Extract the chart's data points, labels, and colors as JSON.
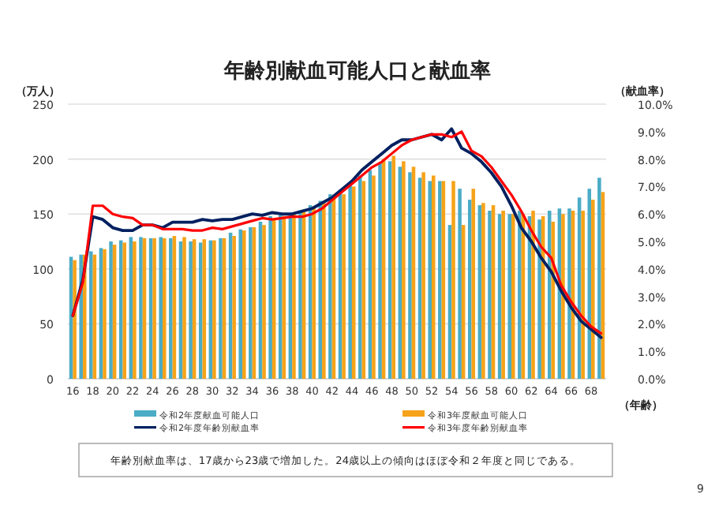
{
  "chart_data": {
    "type": "bar",
    "title": "年齢別献血可能人口と献血率",
    "xlabel": "（年齢）",
    "ylabel": "（万人）",
    "y2label": "（献血率）",
    "categories": [
      "16",
      null,
      "18",
      null,
      "20",
      null,
      "22",
      null,
      "24",
      null,
      "26",
      null,
      "28",
      null,
      "30",
      null,
      "32",
      null,
      "34",
      null,
      "36",
      null,
      "38",
      null,
      "40",
      null,
      "42",
      null,
      "44",
      null,
      "46",
      null,
      "48",
      null,
      "50",
      null,
      "52",
      null,
      "54",
      null,
      "56",
      null,
      "58",
      null,
      "60",
      null,
      "62",
      null,
      "64",
      null,
      "66",
      null,
      "68",
      null
    ],
    "series": [
      {
        "name": "令和2年度献血可能人口",
        "color": "#4bacc6",
        "values": [
          111,
          113,
          116,
          119,
          125,
          126,
          129,
          129,
          128,
          129,
          128,
          125,
          125,
          124,
          126,
          128,
          133,
          136,
          138,
          143,
          148,
          149,
          150,
          153,
          158,
          162,
          168,
          172,
          178,
          185,
          190,
          197,
          198,
          193,
          188,
          183,
          180,
          180,
          140,
          173,
          163,
          158,
          153,
          150,
          150,
          153,
          148,
          145,
          153,
          155,
          155,
          165,
          173,
          183
        ]
      },
      {
        "name": "令和3年度献血可能人口",
        "color": "#f5a31a",
        "values": [
          108,
          113,
          113,
          118,
          122,
          124,
          125,
          128,
          128,
          128,
          130,
          129,
          127,
          127,
          126,
          128,
          130,
          135,
          138,
          140,
          145,
          148,
          150,
          152,
          155,
          160,
          165,
          168,
          175,
          180,
          185,
          200,
          203,
          198,
          193,
          188,
          185,
          180,
          180,
          140,
          173,
          160,
          158,
          153,
          150,
          150,
          153,
          148,
          143,
          150,
          153,
          153,
          163,
          170
        ]
      },
      {
        "name": "令和2年度年齢別献血率",
        "type": "line",
        "axis": "y2",
        "color": "#002060",
        "values": [
          2.3,
          3.6,
          5.9,
          5.8,
          5.5,
          5.4,
          5.4,
          5.6,
          5.6,
          5.5,
          5.7,
          5.7,
          5.7,
          5.8,
          5.75,
          5.8,
          5.8,
          5.9,
          6.0,
          5.95,
          6.05,
          6.0,
          6.0,
          6.1,
          6.2,
          6.4,
          6.6,
          6.9,
          7.2,
          7.6,
          7.9,
          8.2,
          8.5,
          8.7,
          8.7,
          8.8,
          8.9,
          8.7,
          9.1,
          8.4,
          8.2,
          7.9,
          7.5,
          7.0,
          6.3,
          5.5,
          5.0,
          4.4,
          3.9,
          3.2,
          2.6,
          2.1,
          1.8,
          1.5
        ]
      },
      {
        "name": "令和3年度年齢別献血率",
        "type": "line",
        "axis": "y2",
        "color": "#ff0000",
        "values": [
          2.3,
          3.5,
          6.3,
          6.3,
          6.0,
          5.9,
          5.85,
          5.6,
          5.6,
          5.45,
          5.45,
          5.45,
          5.4,
          5.4,
          5.5,
          5.45,
          5.55,
          5.65,
          5.75,
          5.85,
          5.8,
          5.85,
          5.9,
          5.9,
          6.0,
          6.2,
          6.5,
          6.8,
          7.1,
          7.4,
          7.7,
          7.9,
          8.2,
          8.5,
          8.7,
          8.8,
          8.9,
          8.9,
          8.8,
          9.0,
          8.3,
          8.1,
          7.7,
          7.2,
          6.7,
          6.1,
          5.4,
          4.8,
          4.4,
          3.4,
          2.8,
          2.3,
          1.9,
          1.65
        ]
      }
    ],
    "ylim": [
      0,
      250
    ],
    "yticks": [
      0,
      50,
      100,
      150,
      200,
      250
    ],
    "y2lim": [
      0,
      10
    ],
    "y2ticks": [
      {
        "value": 0,
        "label": "0.0%"
      },
      {
        "value": 1,
        "label": "1.0%"
      },
      {
        "value": 2,
        "label": "2.0%"
      },
      {
        "value": 3,
        "label": "3.0%"
      },
      {
        "value": 4,
        "label": "4.0%"
      },
      {
        "value": 5,
        "label": "5.0%"
      },
      {
        "value": 6,
        "label": "6.0%"
      },
      {
        "value": 7,
        "label": "7.0%"
      },
      {
        "value": 8,
        "label": "8.0%"
      },
      {
        "value": 9,
        "label": "9.0%"
      },
      {
        "value": 10,
        "label": "10.0%"
      }
    ],
    "grid": "y",
    "legend": "bottom",
    "marker": "none",
    "line_style": "solid",
    "annotations": [
      "年齢別献血率は、17歳から23歳で増加した。24歳以上の傾向はほぼ令和２年度と同じである。",
      "9"
    ]
  }
}
